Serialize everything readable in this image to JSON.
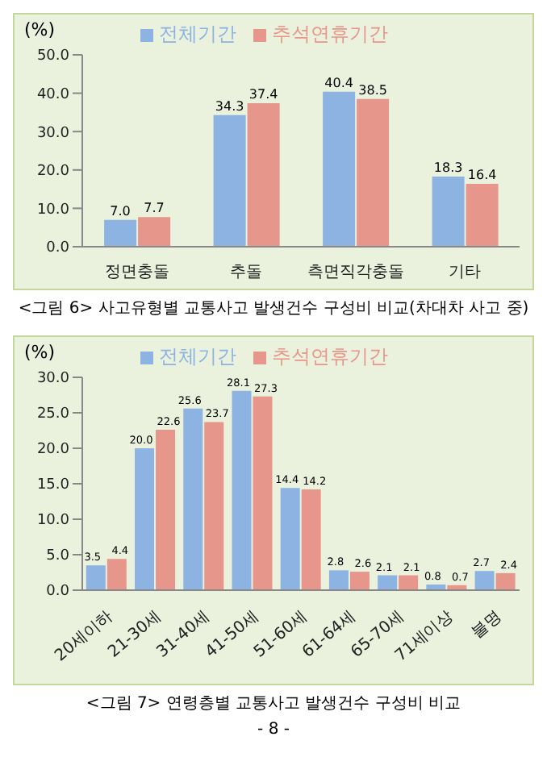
{
  "chart_data": [
    {
      "type": "bar",
      "ylabel": "(%)",
      "categories": [
        "정면충돌",
        "추돌",
        "측면직각충돌",
        "기타"
      ],
      "series": [
        {
          "name": "전체기간",
          "color": "#8db3e2",
          "values": [
            7.0,
            34.3,
            40.4,
            18.3
          ],
          "value_labels": [
            "7.0",
            "34.3",
            "40.4",
            "18.3"
          ]
        },
        {
          "name": "추석연휴기간",
          "color": "#e6968a",
          "values": [
            7.7,
            37.4,
            38.5,
            16.4
          ],
          "value_labels": [
            "7.7",
            "37.4",
            "38.5",
            "16.4"
          ]
        }
      ],
      "ylim": [
        0,
        50
      ],
      "yticks": [
        {
          "value": 0,
          "label": "0.0"
        },
        {
          "value": 10,
          "label": "10.0"
        },
        {
          "value": 20,
          "label": "20.0"
        },
        {
          "value": 30,
          "label": "30.0"
        },
        {
          "value": 40,
          "label": "40.0"
        },
        {
          "value": 50,
          "label": "50.0"
        }
      ],
      "legend": "top",
      "annotations": [
        "<그림 6> 사고유형별 교통사고 발생건수 구성비 비교(차대차 사고 중)"
      ]
    },
    {
      "type": "bar",
      "ylabel": "(%)",
      "categories": [
        "20세이하",
        "21-30세",
        "31-40세",
        "41-50세",
        "51-60세",
        "61-64세",
        "65-70세",
        "71세이상",
        "불명"
      ],
      "series": [
        {
          "name": "전체기간",
          "color": "#8db3e2",
          "values": [
            3.5,
            20.0,
            25.6,
            28.1,
            14.4,
            2.8,
            2.1,
            0.8,
            2.7
          ],
          "value_labels": [
            "3.5",
            "20.0",
            "25.6",
            "28.1",
            "14.4",
            "2.8",
            "2.1",
            "0.8",
            "2.7"
          ]
        },
        {
          "name": "추석연휴기간",
          "color": "#e6968a",
          "values": [
            4.4,
            22.6,
            23.7,
            27.3,
            14.2,
            2.6,
            2.1,
            0.7,
            2.4
          ],
          "value_labels": [
            "4.4",
            "22.6",
            "23.7",
            "27.3",
            "14.2",
            "2.6",
            "2.1",
            "0.7",
            "2.4"
          ]
        }
      ],
      "ylim": [
        0,
        30
      ],
      "yticks": [
        {
          "value": 0,
          "label": "0.0"
        },
        {
          "value": 5,
          "label": "5.0"
        },
        {
          "value": 10,
          "label": "10.0"
        },
        {
          "value": 15,
          "label": "15.0"
        },
        {
          "value": 20,
          "label": "20.0"
        },
        {
          "value": 25,
          "label": "25.0"
        },
        {
          "value": 30,
          "label": "30.0"
        }
      ],
      "legend": "top",
      "annotations": [
        "<그림 7> 연령층별 교통사고 발생건수 구성비 비교",
        "- 8 -"
      ]
    }
  ]
}
